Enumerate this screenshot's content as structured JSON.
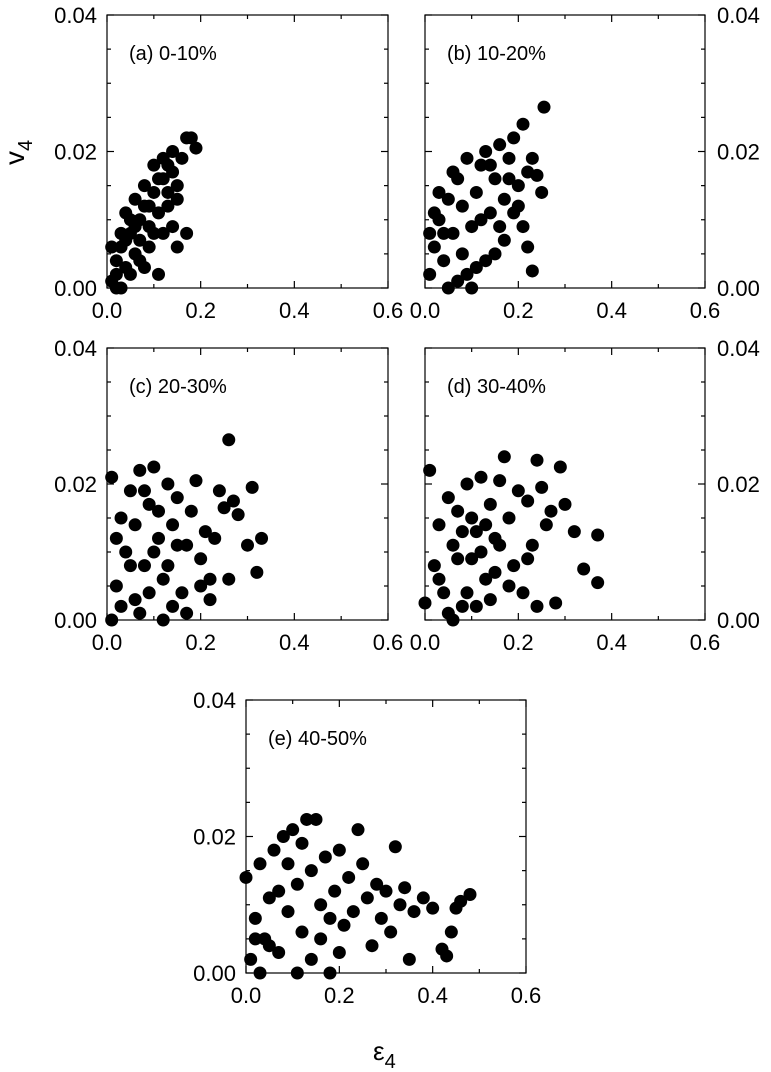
{
  "figure": {
    "y_axis_label": "v",
    "y_axis_label_sub": "4",
    "x_axis_label": "ε",
    "x_axis_label_sub": "4"
  },
  "chart_data": [
    {
      "type": "scatter",
      "id": "a",
      "label": "(a) 0-10%",
      "xlim": [
        0,
        0.6
      ],
      "ylim": [
        0,
        0.04
      ],
      "x_ticks": [
        "0.0",
        "0.2",
        "0.4",
        "0.6"
      ],
      "y_ticks": [
        "0.00",
        "0.02",
        "0.04"
      ],
      "points": [
        [
          0.01,
          0.001
        ],
        [
          0.02,
          0.004
        ],
        [
          0.03,
          0.006
        ],
        [
          0.04,
          0.003
        ],
        [
          0.05,
          0.008
        ],
        [
          0.06,
          0.005
        ],
        [
          0.07,
          0.01
        ],
        [
          0.08,
          0.012
        ],
        [
          0.09,
          0.009
        ],
        [
          0.1,
          0.014
        ],
        [
          0.11,
          0.011
        ],
        [
          0.12,
          0.016
        ],
        [
          0.13,
          0.018
        ],
        [
          0.14,
          0.02
        ],
        [
          0.15,
          0.015
        ],
        [
          0.16,
          0.019
        ],
        [
          0.17,
          0.022
        ],
        [
          0.18,
          0.022
        ],
        [
          0.19,
          0.0205
        ],
        [
          0.02,
          0.0
        ],
        [
          0.03,
          0.008
        ],
        [
          0.04,
          0.011
        ],
        [
          0.05,
          0.002
        ],
        [
          0.06,
          0.013
        ],
        [
          0.07,
          0.004
        ],
        [
          0.08,
          0.015
        ],
        [
          0.09,
          0.006
        ],
        [
          0.1,
          0.018
        ],
        [
          0.11,
          0.002
        ],
        [
          0.12,
          0.008
        ],
        [
          0.13,
          0.012
        ],
        [
          0.14,
          0.009
        ],
        [
          0.15,
          0.006
        ],
        [
          0.17,
          0.008
        ],
        [
          0.01,
          0.006
        ],
        [
          0.02,
          0.002
        ],
        [
          0.03,
          0.0
        ],
        [
          0.04,
          0.007
        ],
        [
          0.05,
          0.01
        ],
        [
          0.06,
          0.009
        ],
        [
          0.07,
          0.007
        ],
        [
          0.08,
          0.003
        ],
        [
          0.09,
          0.012
        ],
        [
          0.1,
          0.008
        ],
        [
          0.11,
          0.016
        ],
        [
          0.12,
          0.019
        ],
        [
          0.13,
          0.014
        ],
        [
          0.14,
          0.017
        ],
        [
          0.15,
          0.013
        ]
      ]
    },
    {
      "type": "scatter",
      "id": "b",
      "label": "(b) 10-20%",
      "xlim": [
        0,
        0.6
      ],
      "ylim": [
        0,
        0.04
      ],
      "x_ticks": [
        "0.0",
        "0.2",
        "0.4",
        "0.6"
      ],
      "y_ticks": [
        "0.00",
        "0.02",
        "0.04"
      ],
      "points": [
        [
          0.01,
          0.002
        ],
        [
          0.02,
          0.006
        ],
        [
          0.03,
          0.01
        ],
        [
          0.04,
          0.004
        ],
        [
          0.05,
          0.013
        ],
        [
          0.06,
          0.008
        ],
        [
          0.07,
          0.016
        ],
        [
          0.08,
          0.012
        ],
        [
          0.09,
          0.019
        ],
        [
          0.1,
          0.009
        ],
        [
          0.11,
          0.014
        ],
        [
          0.12,
          0.018
        ],
        [
          0.13,
          0.02
        ],
        [
          0.14,
          0.011
        ],
        [
          0.15,
          0.016
        ],
        [
          0.16,
          0.021
        ],
        [
          0.17,
          0.013
        ],
        [
          0.18,
          0.019
        ],
        [
          0.19,
          0.022
        ],
        [
          0.2,
          0.015
        ],
        [
          0.21,
          0.024
        ],
        [
          0.22,
          0.017
        ],
        [
          0.23,
          0.019
        ],
        [
          0.24,
          0.0165
        ],
        [
          0.25,
          0.014
        ],
        [
          0.255,
          0.0265
        ],
        [
          0.21,
          0.009
        ],
        [
          0.22,
          0.006
        ],
        [
          0.23,
          0.0025
        ],
        [
          0.19,
          0.011
        ],
        [
          0.17,
          0.007
        ],
        [
          0.15,
          0.005
        ],
        [
          0.13,
          0.004
        ],
        [
          0.11,
          0.003
        ],
        [
          0.09,
          0.002
        ],
        [
          0.07,
          0.001
        ],
        [
          0.05,
          0.0
        ],
        [
          0.04,
          0.008
        ],
        [
          0.03,
          0.014
        ],
        [
          0.06,
          0.017
        ],
        [
          0.08,
          0.005
        ],
        [
          0.1,
          0.0
        ],
        [
          0.12,
          0.01
        ],
        [
          0.14,
          0.018
        ],
        [
          0.16,
          0.009
        ],
        [
          0.18,
          0.016
        ],
        [
          0.02,
          0.011
        ],
        [
          0.01,
          0.008
        ],
        [
          0.2,
          0.012
        ]
      ]
    },
    {
      "type": "scatter",
      "id": "c",
      "label": "(c) 20-30%",
      "xlim": [
        0,
        0.6
      ],
      "ylim": [
        0,
        0.04
      ],
      "x_ticks": [
        "0.0",
        "0.2",
        "0.4",
        "0.6"
      ],
      "y_ticks": [
        "0.00",
        "0.02",
        "0.04"
      ],
      "points": [
        [
          0.01,
          0.0
        ],
        [
          0.01,
          0.021
        ],
        [
          0.02,
          0.005
        ],
        [
          0.03,
          0.015
        ],
        [
          0.04,
          0.01
        ],
        [
          0.05,
          0.019
        ],
        [
          0.06,
          0.003
        ],
        [
          0.07,
          0.022
        ],
        [
          0.08,
          0.008
        ],
        [
          0.09,
          0.017
        ],
        [
          0.1,
          0.0225
        ],
        [
          0.11,
          0.012
        ],
        [
          0.12,
          0.006
        ],
        [
          0.13,
          0.02
        ],
        [
          0.14,
          0.014
        ],
        [
          0.15,
          0.018
        ],
        [
          0.16,
          0.004
        ],
        [
          0.17,
          0.011
        ],
        [
          0.18,
          0.016
        ],
        [
          0.19,
          0.0205
        ],
        [
          0.2,
          0.009
        ],
        [
          0.21,
          0.013
        ],
        [
          0.22,
          0.006
        ],
        [
          0.23,
          0.012
        ],
        [
          0.24,
          0.019
        ],
        [
          0.25,
          0.0165
        ],
        [
          0.26,
          0.0265
        ],
        [
          0.27,
          0.0175
        ],
        [
          0.28,
          0.0155
        ],
        [
          0.3,
          0.011
        ],
        [
          0.31,
          0.0195
        ],
        [
          0.32,
          0.007
        ],
        [
          0.33,
          0.012
        ],
        [
          0.26,
          0.006
        ],
        [
          0.22,
          0.003
        ],
        [
          0.2,
          0.005
        ],
        [
          0.02,
          0.012
        ],
        [
          0.03,
          0.002
        ],
        [
          0.05,
          0.008
        ],
        [
          0.06,
          0.014
        ],
        [
          0.07,
          0.001
        ],
        [
          0.08,
          0.019
        ],
        [
          0.09,
          0.004
        ],
        [
          0.1,
          0.01
        ],
        [
          0.11,
          0.016
        ],
        [
          0.12,
          0.0
        ],
        [
          0.13,
          0.008
        ],
        [
          0.14,
          0.002
        ],
        [
          0.15,
          0.011
        ],
        [
          0.17,
          0.001
        ]
      ]
    },
    {
      "type": "scatter",
      "id": "d",
      "label": "(d) 30-40%",
      "xlim": [
        0,
        0.6
      ],
      "ylim": [
        0,
        0.04
      ],
      "x_ticks": [
        "0.0",
        "0.2",
        "0.4",
        "0.6"
      ],
      "y_ticks": [
        "0.00",
        "0.02",
        "0.04"
      ],
      "points": [
        [
          0.0,
          0.0025
        ],
        [
          0.01,
          0.022
        ],
        [
          0.02,
          0.008
        ],
        [
          0.03,
          0.014
        ],
        [
          0.04,
          0.004
        ],
        [
          0.05,
          0.018
        ],
        [
          0.06,
          0.011
        ],
        [
          0.07,
          0.016
        ],
        [
          0.08,
          0.002
        ],
        [
          0.09,
          0.02
        ],
        [
          0.1,
          0.009
        ],
        [
          0.11,
          0.013
        ],
        [
          0.12,
          0.021
        ],
        [
          0.13,
          0.006
        ],
        [
          0.14,
          0.017
        ],
        [
          0.15,
          0.012
        ],
        [
          0.16,
          0.0205
        ],
        [
          0.17,
          0.024
        ],
        [
          0.18,
          0.015
        ],
        [
          0.19,
          0.008
        ],
        [
          0.2,
          0.019
        ],
        [
          0.21,
          0.004
        ],
        [
          0.22,
          0.0175
        ],
        [
          0.23,
          0.011
        ],
        [
          0.24,
          0.0235
        ],
        [
          0.25,
          0.0195
        ],
        [
          0.26,
          0.014
        ],
        [
          0.27,
          0.016
        ],
        [
          0.29,
          0.0225
        ],
        [
          0.3,
          0.017
        ],
        [
          0.32,
          0.013
        ],
        [
          0.34,
          0.0075
        ],
        [
          0.37,
          0.0125
        ],
        [
          0.37,
          0.0055
        ],
        [
          0.28,
          0.0025
        ],
        [
          0.24,
          0.002
        ],
        [
          0.22,
          0.009
        ],
        [
          0.03,
          0.006
        ],
        [
          0.05,
          0.001
        ],
        [
          0.06,
          0.0
        ],
        [
          0.07,
          0.009
        ],
        [
          0.08,
          0.013
        ],
        [
          0.09,
          0.004
        ],
        [
          0.1,
          0.015
        ],
        [
          0.11,
          0.002
        ],
        [
          0.12,
          0.01
        ],
        [
          0.13,
          0.014
        ],
        [
          0.14,
          0.003
        ],
        [
          0.15,
          0.007
        ],
        [
          0.16,
          0.011
        ],
        [
          0.18,
          0.005
        ]
      ]
    },
    {
      "type": "scatter",
      "id": "e",
      "label": "(e) 40-50%",
      "xlim": [
        0,
        0.6
      ],
      "ylim": [
        0,
        0.04
      ],
      "x_ticks": [
        "0.0",
        "0.2",
        "0.4",
        "0.6"
      ],
      "y_ticks": [
        "0.00",
        "0.02",
        "0.04"
      ],
      "points": [
        [
          0.0,
          0.014
        ],
        [
          0.01,
          0.002
        ],
        [
          0.02,
          0.008
        ],
        [
          0.03,
          0.016
        ],
        [
          0.04,
          0.005
        ],
        [
          0.05,
          0.011
        ],
        [
          0.06,
          0.018
        ],
        [
          0.07,
          0.003
        ],
        [
          0.08,
          0.02
        ],
        [
          0.09,
          0.009
        ],
        [
          0.1,
          0.021
        ],
        [
          0.11,
          0.013
        ],
        [
          0.12,
          0.006
        ],
        [
          0.13,
          0.0225
        ],
        [
          0.14,
          0.015
        ],
        [
          0.15,
          0.0225
        ],
        [
          0.16,
          0.01
        ],
        [
          0.17,
          0.017
        ],
        [
          0.18,
          0.0
        ],
        [
          0.19,
          0.012
        ],
        [
          0.2,
          0.018
        ],
        [
          0.21,
          0.007
        ],
        [
          0.22,
          0.014
        ],
        [
          0.23,
          0.009
        ],
        [
          0.24,
          0.021
        ],
        [
          0.25,
          0.016
        ],
        [
          0.26,
          0.011
        ],
        [
          0.27,
          0.004
        ],
        [
          0.28,
          0.013
        ],
        [
          0.29,
          0.008
        ],
        [
          0.3,
          0.012
        ],
        [
          0.31,
          0.006
        ],
        [
          0.32,
          0.0185
        ],
        [
          0.33,
          0.01
        ],
        [
          0.34,
          0.0125
        ],
        [
          0.35,
          0.002
        ],
        [
          0.36,
          0.009
        ],
        [
          0.38,
          0.011
        ],
        [
          0.4,
          0.0095
        ],
        [
          0.42,
          0.0035
        ],
        [
          0.43,
          0.0025
        ],
        [
          0.44,
          0.006
        ],
        [
          0.45,
          0.0095
        ],
        [
          0.46,
          0.0105
        ],
        [
          0.48,
          0.0115
        ],
        [
          0.02,
          0.005
        ],
        [
          0.03,
          0.0
        ],
        [
          0.05,
          0.004
        ],
        [
          0.07,
          0.012
        ],
        [
          0.09,
          0.016
        ],
        [
          0.11,
          0.0
        ],
        [
          0.12,
          0.019
        ],
        [
          0.14,
          0.002
        ],
        [
          0.16,
          0.005
        ],
        [
          0.18,
          0.008
        ],
        [
          0.2,
          0.003
        ]
      ]
    }
  ]
}
